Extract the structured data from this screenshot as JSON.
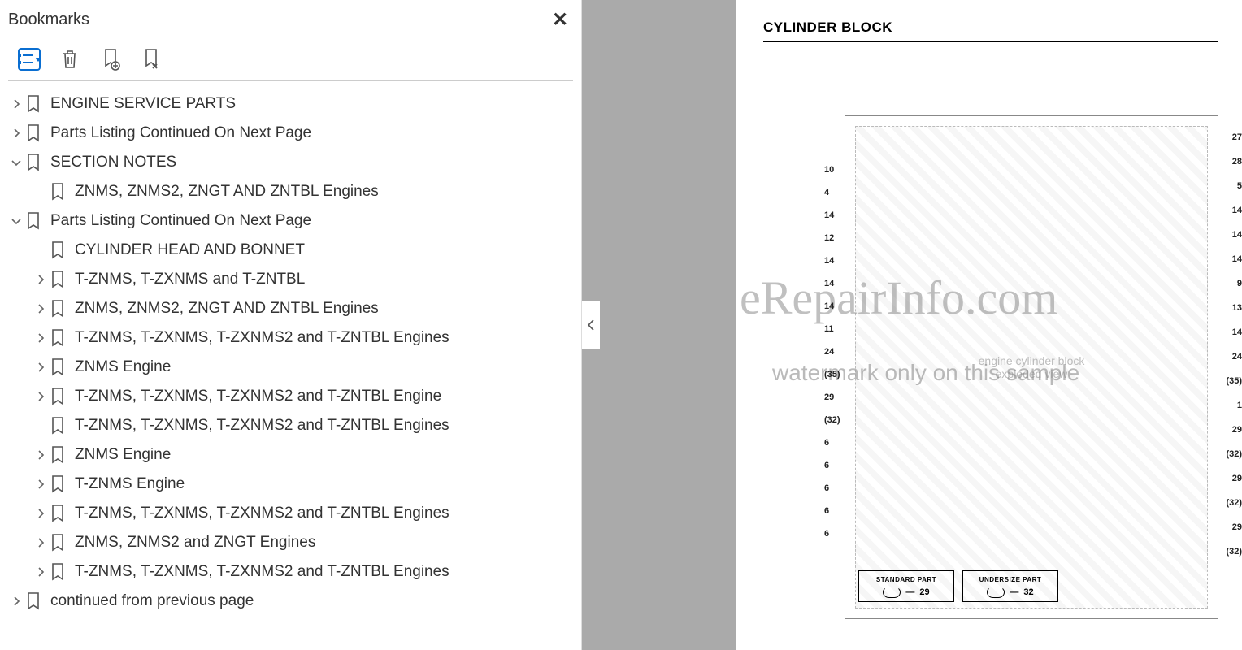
{
  "sidebar": {
    "title": "Bookmarks",
    "items": [
      {
        "label": "ENGINE SERVICE PARTS",
        "level": 0,
        "expander": "right",
        "hasIcon": true
      },
      {
        "label": "Parts Listing Continued On Next Page",
        "level": 0,
        "expander": "right",
        "hasIcon": true
      },
      {
        "label": "SECTION NOTES",
        "level": 0,
        "expander": "down",
        "hasIcon": true
      },
      {
        "label": "ZNMS, ZNMS2, ZNGT AND ZNTBL Engines",
        "level": 1,
        "expander": "none",
        "hasIcon": true
      },
      {
        "label": "Parts Listing Continued On Next Page",
        "level": 0,
        "expander": "down",
        "hasIcon": true
      },
      {
        "label": "CYLINDER HEAD AND BONNET",
        "level": 1,
        "expander": "none",
        "hasIcon": true
      },
      {
        "label": "T-ZNMS, T-ZXNMS and T-ZNTBL",
        "level": 1,
        "expander": "right",
        "hasIcon": true
      },
      {
        "label": "ZNMS, ZNMS2, ZNGT AND ZNTBL Engines",
        "level": 1,
        "expander": "right",
        "hasIcon": true
      },
      {
        "label": "T-ZNMS, T-ZXNMS, T-ZXNMS2 and T-ZNTBL Engines",
        "level": 1,
        "expander": "right",
        "hasIcon": true
      },
      {
        "label": "ZNMS Engine",
        "level": 1,
        "expander": "right",
        "hasIcon": true
      },
      {
        "label": "T-ZNMS, T-ZXNMS, T-ZXNMS2 and T-ZNTBL Engine",
        "level": 1,
        "expander": "right",
        "hasIcon": true
      },
      {
        "label": "T-ZNMS, T-ZXNMS, T-ZXNMS2 and T-ZNTBL Engines",
        "level": 1,
        "expander": "none",
        "hasIcon": true
      },
      {
        "label": "ZNMS Engine",
        "level": 1,
        "expander": "right",
        "hasIcon": true
      },
      {
        "label": "T-ZNMS Engine",
        "level": 1,
        "expander": "right",
        "hasIcon": true
      },
      {
        "label": "T-ZNMS, T-ZXNMS, T-ZXNMS2 and T-ZNTBL Engines",
        "level": 1,
        "expander": "right",
        "hasIcon": true
      },
      {
        "label": "ZNMS, ZNMS2 and ZNGT Engines",
        "level": 1,
        "expander": "right",
        "hasIcon": true
      },
      {
        "label": "T-ZNMS, T-ZXNMS, T-ZXNMS2 and T-ZNTBL Engines",
        "level": 1,
        "expander": "right",
        "hasIcon": true
      },
      {
        "label": "continued from previous page",
        "level": 0,
        "expander": "right",
        "hasIcon": true
      }
    ]
  },
  "document": {
    "heading": "CYLINDER BLOCK",
    "watermark_main": "eRepairInfo.com",
    "watermark_sub": "watermark only on this sample",
    "parts_boxes": [
      {
        "title": "STANDARD PART",
        "num": "29"
      },
      {
        "title": "UNDERSIZE PART",
        "num": "32"
      }
    ],
    "callouts_left": [
      "10",
      "4",
      "14",
      "12",
      "14",
      "14",
      "14",
      "11",
      "24",
      "(35)",
      "29",
      "(32)",
      "6",
      "6",
      "6",
      "6",
      "6"
    ],
    "callouts_right": [
      "27",
      "28",
      "5",
      "14",
      "14",
      "14",
      "9",
      "13",
      "14",
      "24",
      "(35)",
      "1",
      "29",
      "(32)",
      "29",
      "(32)",
      "29",
      "(32)"
    ]
  },
  "colors": {
    "accent": "#0a6ed1",
    "icon": "#555555",
    "text": "#333333",
    "divider": "#cccccc",
    "gap_bg": "#aaaaaa"
  }
}
